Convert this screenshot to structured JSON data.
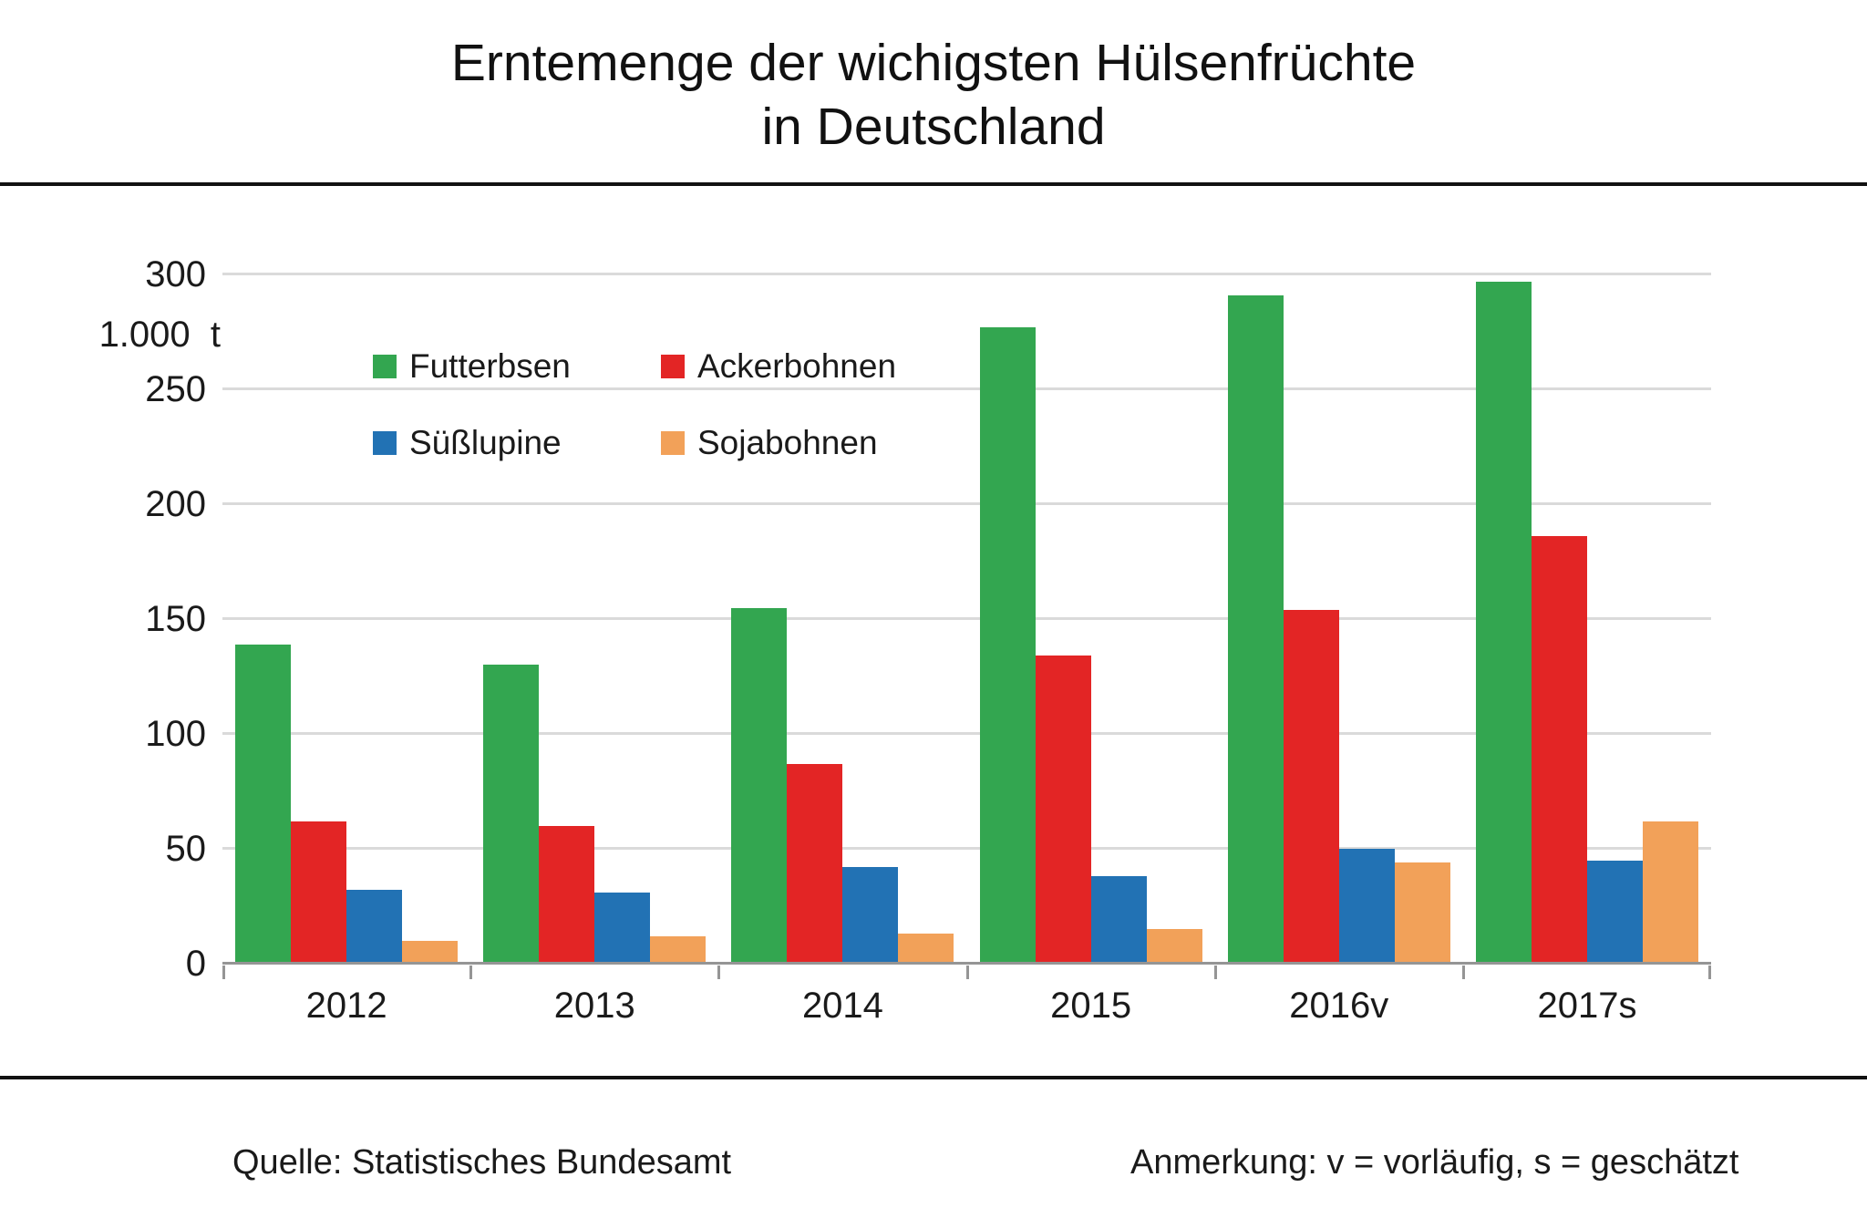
{
  "title": {
    "line1": "Erntemenge der wichigsten Hülsenfrüchte",
    "line2": "in Deutschland"
  },
  "y_axis": {
    "unit_label": "1.000  t"
  },
  "footer": {
    "source": "Quelle: Statistisches Bundesamt",
    "note": "Anmerkung: v = vorläufig, s = geschätzt"
  },
  "colors": {
    "futterbsen_green": "#33a650",
    "ackerbohnen_red": "#e32525",
    "susslupine_blue": "#2272b4",
    "sojabohnen_orange": "#f2a159",
    "gridline_grey": "#dadada",
    "axis_grey": "#959595",
    "rule_black": "#111111"
  },
  "chart_data": {
    "type": "bar",
    "title": "Erntemenge der wichigsten Hülsenfrüchte in Deutschland",
    "ylabel": "1.000 t",
    "categories": [
      "2012",
      "2013",
      "2014",
      "2015",
      "2016v",
      "2017s"
    ],
    "series": [
      {
        "name": "Futterbsen",
        "color": "#33a650",
        "values": [
          139,
          130,
          155,
          277,
          291,
          297
        ]
      },
      {
        "name": "Ackerbohnen",
        "color": "#e32525",
        "values": [
          62,
          60,
          87,
          134,
          154,
          186
        ]
      },
      {
        "name": "Süßlupine",
        "color": "#2272b4",
        "values": [
          32,
          31,
          42,
          38,
          50,
          45
        ]
      },
      {
        "name": "Sojabohnen",
        "color": "#f2a159",
        "values": [
          10,
          12,
          13,
          15,
          44,
          62
        ]
      }
    ],
    "ylim": [
      0,
      310
    ],
    "yticks": [
      0,
      50,
      100,
      150,
      200,
      250,
      300
    ],
    "grid": true,
    "legend_position": "upper-left-inside",
    "note_markers": "v = vorläufig, s = geschätzt"
  }
}
